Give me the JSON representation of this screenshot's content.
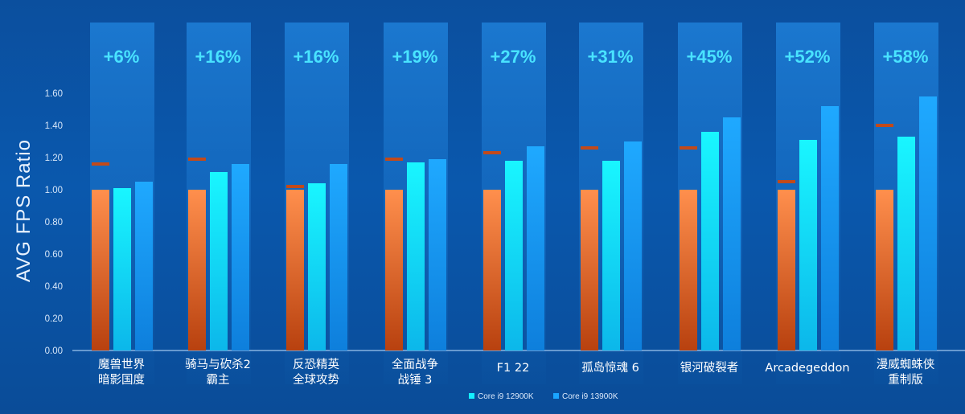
{
  "chart_data": {
    "type": "bar",
    "ylabel": "AVG  FPS Ratio",
    "ylim": [
      0,
      1.6
    ],
    "yticks": [
      "0.00",
      "0.20",
      "0.40",
      "0.60",
      "0.80",
      "1.00",
      "1.20",
      "1.40",
      "1.60"
    ],
    "grid": false,
    "legend_position": "bottom",
    "categories": [
      [
        "魔兽世界",
        "暗影国度"
      ],
      [
        "骑马与砍杀2",
        "霸主"
      ],
      [
        "反恐精英",
        "全球攻势"
      ],
      [
        "全面战争",
        "战锤 3"
      ],
      [
        "F1 22"
      ],
      [
        "孤岛惊魂 6"
      ],
      [
        "银河破裂者"
      ],
      [
        "Arcadegeddon"
      ],
      [
        "漫威蜘蛛侠",
        "重制版"
      ]
    ],
    "gains": [
      "+6%",
      "+16%",
      "+16%",
      "+19%",
      "+27%",
      "+31%",
      "+45%",
      "+52%",
      "+58%"
    ],
    "series": [
      {
        "values": [
          1.0,
          1.0,
          1.0,
          1.0,
          1.0,
          1.0,
          1.0,
          1.0,
          1.0
        ]
      },
      {
        "name": "Core i9 12900K",
        "values": [
          1.01,
          1.11,
          1.04,
          1.17,
          1.18,
          1.18,
          1.36,
          1.31,
          1.33
        ]
      },
      {
        "name": "Core i9 13900K",
        "values": [
          1.05,
          1.16,
          1.16,
          1.19,
          1.27,
          1.3,
          1.45,
          1.52,
          1.58
        ]
      }
    ],
    "markers": [
      1.16,
      1.19,
      1.02,
      1.19,
      1.23,
      1.26,
      1.26,
      1.05,
      1.4
    ]
  },
  "colors": {
    "bar_orange_top": "#ff8f4d",
    "bar_orange_bottom": "#b8410f",
    "bar_cyan": "#14f0ff",
    "bar_blue": "#1aa5ff",
    "marker": "#c24a1a",
    "gain_text": "#49e3ff",
    "column_bg": "#1b74c9",
    "axis_line": "#9fc6ef",
    "tick_text": "#d6e6f8"
  }
}
